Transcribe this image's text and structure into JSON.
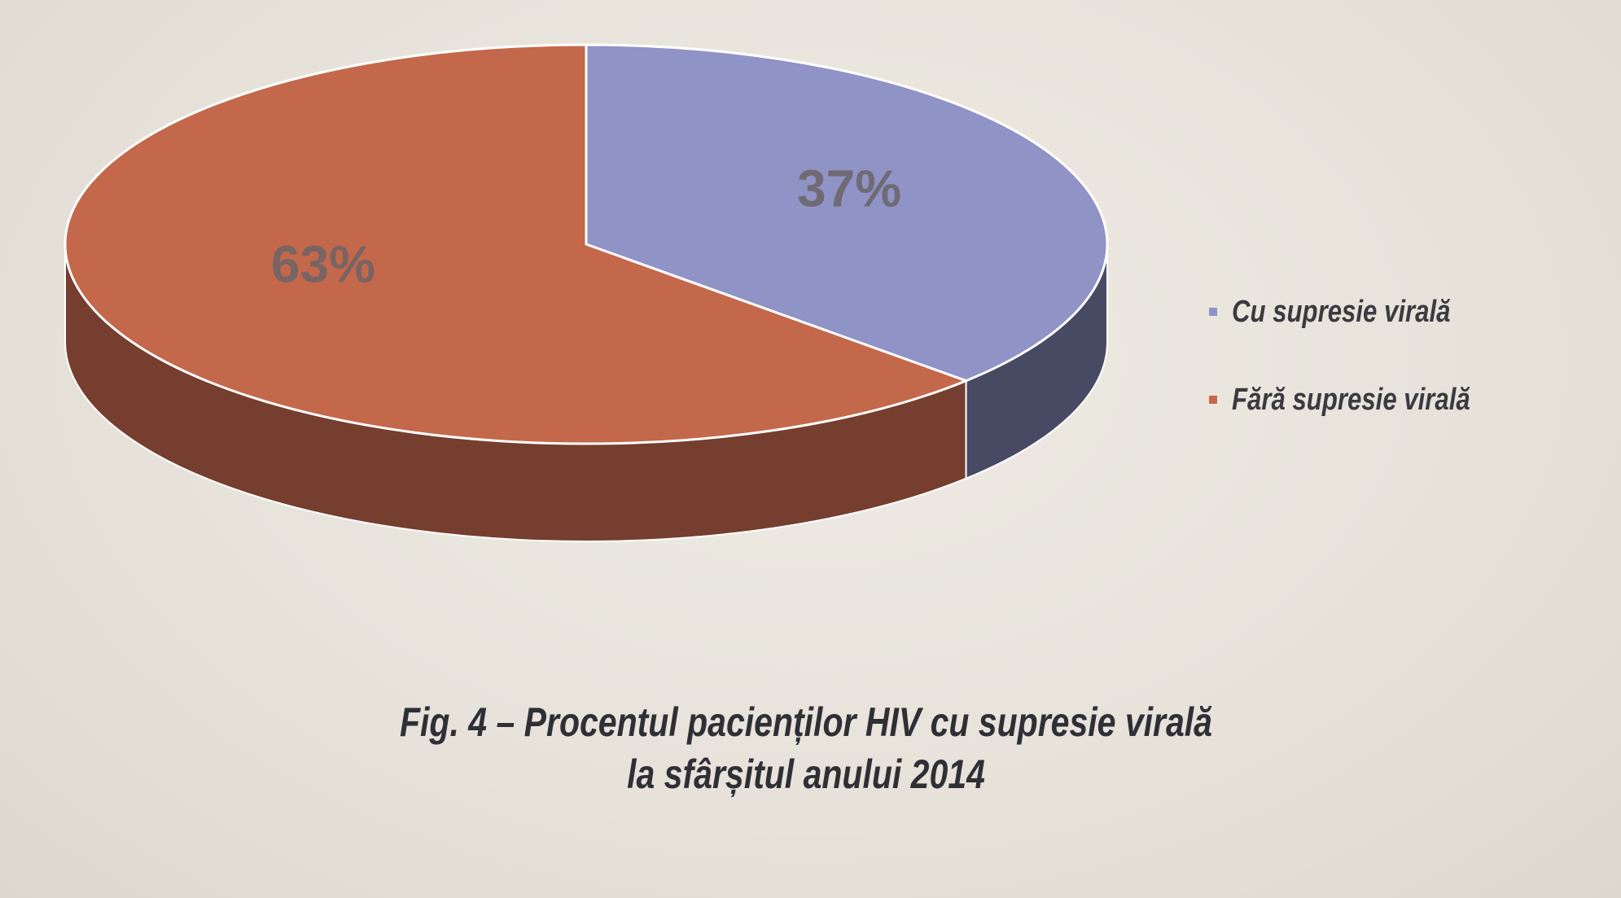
{
  "chart_data": {
    "type": "pie",
    "categories": [
      "Cu supresie virală",
      "Fără supresie virală"
    ],
    "values": [
      37,
      63
    ],
    "value_labels": [
      "37%",
      "63%"
    ],
    "colors": [
      "#8f93c6",
      "#c4684c"
    ],
    "legend_position": "right",
    "caption_line1": "Fig. 4 – Procentul pacienților HIV cu supresie virală",
    "caption_line2": "la sfârșitul anului 2014"
  }
}
